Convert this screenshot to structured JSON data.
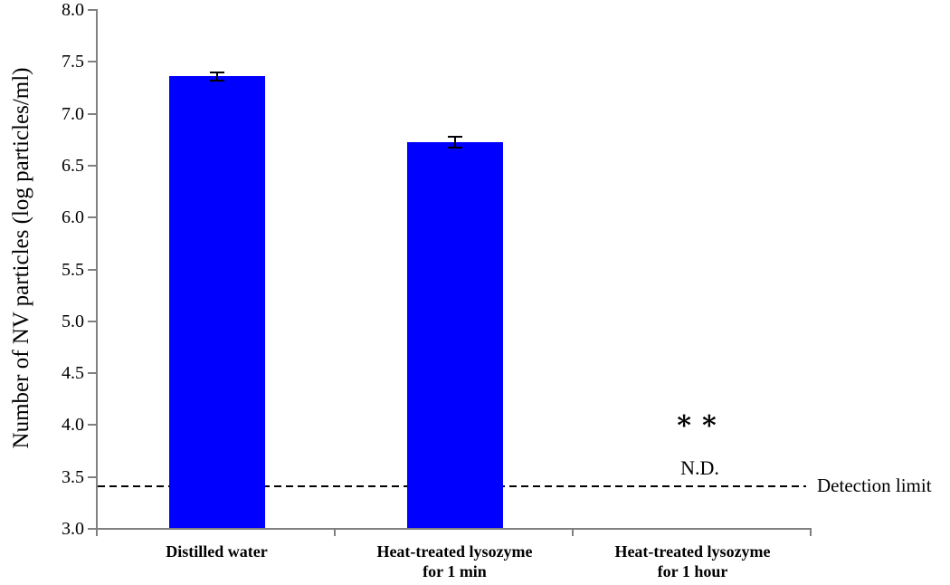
{
  "chart_data": {
    "type": "bar",
    "title": "",
    "xlabel": "",
    "ylabel": "Number of NV particles (log particles/ml)",
    "categories": [
      "Distilled water",
      "Heat-treated lysozyme\nfor 1 min",
      "Heat-treated lysozyme\nfor 1 hour"
    ],
    "values": [
      7.35,
      6.72,
      null
    ],
    "errors": [
      0.05,
      0.06,
      null
    ],
    "ylim": [
      3.0,
      8.0
    ],
    "ytick_step": 0.5,
    "ytick_labels": [
      "8.0",
      "7.5",
      "7.0",
      "6.5",
      "6.0",
      "5.5",
      "5.0",
      "4.5",
      "4.0",
      "3.5",
      "3.0"
    ],
    "grid": false,
    "legend": null,
    "bar_color": "#0000fe",
    "axis_color": "#808080",
    "detection_limit": {
      "value": 3.4,
      "label": "Detection limit"
    },
    "annotations": [
      {
        "text": "∗∗",
        "style": "stars",
        "category_index": 2,
        "y_value": 4.02
      },
      {
        "text": "N.D.",
        "style": "nd",
        "category_index": 2,
        "y_value": 3.58
      }
    ]
  }
}
